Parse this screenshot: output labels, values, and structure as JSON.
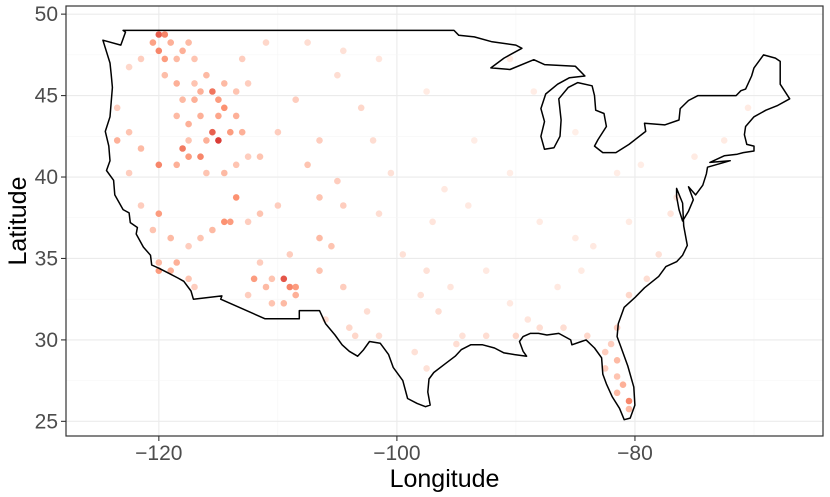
{
  "chart_data": {
    "type": "scatter",
    "title": "",
    "xlabel": "Longitude",
    "ylabel": "Latitude",
    "xlim": [
      -127.8,
      -64.2
    ],
    "ylim": [
      24.1,
      50.5
    ],
    "x_ticks": [
      -120,
      -100,
      -80
    ],
    "x_tick_labels": [
      "−120",
      "−100",
      "−80"
    ],
    "y_ticks": [
      25,
      30,
      35,
      40,
      45,
      50
    ],
    "y_tick_labels": [
      "25",
      "30",
      "35",
      "40",
      "45",
      "50"
    ],
    "grid": true,
    "legend": "none",
    "colors": {
      "low": "#fff5f0",
      "high": "#cb181d",
      "panel_border": "#333333",
      "grid_major": "#ebebeb",
      "grid_minor": "#f5f5f5",
      "outline": "#000000"
    },
    "outline": [
      [
        -124.7,
        48.4
      ],
      [
        -123.2,
        48.1
      ],
      [
        -122.8,
        48.9
      ],
      [
        -123.0,
        49.0
      ],
      [
        -95.2,
        49.0
      ],
      [
        -94.8,
        48.7
      ],
      [
        -93.5,
        48.6
      ],
      [
        -92.0,
        48.3
      ],
      [
        -90.0,
        48.1
      ],
      [
        -89.5,
        47.9
      ],
      [
        -91.0,
        47.3
      ],
      [
        -92.1,
        46.7
      ],
      [
        -90.5,
        46.6
      ],
      [
        -88.5,
        47.2
      ],
      [
        -87.6,
        46.9
      ],
      [
        -85.0,
        46.8
      ],
      [
        -84.6,
        46.5
      ],
      [
        -84.2,
        46.2
      ],
      [
        -85.5,
        46.1
      ],
      [
        -86.5,
        45.7
      ],
      [
        -87.5,
        45.1
      ],
      [
        -87.9,
        44.2
      ],
      [
        -87.6,
        43.4
      ],
      [
        -87.9,
        42.5
      ],
      [
        -87.6,
        41.7
      ],
      [
        -86.8,
        41.8
      ],
      [
        -86.3,
        42.5
      ],
      [
        -86.2,
        43.5
      ],
      [
        -86.4,
        44.8
      ],
      [
        -85.6,
        45.5
      ],
      [
        -84.8,
        45.8
      ],
      [
        -83.6,
        45.6
      ],
      [
        -83.4,
        45.0
      ],
      [
        -83.3,
        44.1
      ],
      [
        -82.6,
        43.9
      ],
      [
        -82.4,
        43.1
      ],
      [
        -83.1,
        42.3
      ],
      [
        -83.4,
        41.9
      ],
      [
        -82.7,
        41.5
      ],
      [
        -81.6,
        41.5
      ],
      [
        -80.5,
        42.0
      ],
      [
        -79.1,
        42.8
      ],
      [
        -79.2,
        43.3
      ],
      [
        -77.5,
        43.2
      ],
      [
        -76.3,
        43.5
      ],
      [
        -76.2,
        44.2
      ],
      [
        -75.5,
        44.7
      ],
      [
        -74.7,
        45.0
      ],
      [
        -71.5,
        45.0
      ],
      [
        -71.1,
        45.3
      ],
      [
        -70.7,
        45.4
      ],
      [
        -70.2,
        46.2
      ],
      [
        -70.0,
        46.7
      ],
      [
        -69.2,
        47.5
      ],
      [
        -68.2,
        47.3
      ],
      [
        -67.8,
        47.1
      ],
      [
        -67.8,
        45.7
      ],
      [
        -67.0,
        44.8
      ],
      [
        -68.0,
        44.4
      ],
      [
        -69.0,
        44.1
      ],
      [
        -70.0,
        43.7
      ],
      [
        -70.7,
        43.1
      ],
      [
        -70.8,
        42.6
      ],
      [
        -70.6,
        42.0
      ],
      [
        -70.0,
        41.9
      ],
      [
        -70.0,
        41.6
      ],
      [
        -70.9,
        41.5
      ],
      [
        -71.4,
        41.4
      ],
      [
        -72.5,
        41.3
      ],
      [
        -73.7,
        40.9
      ],
      [
        -72.0,
        41.0
      ],
      [
        -73.9,
        40.6
      ],
      [
        -74.0,
        40.2
      ],
      [
        -74.3,
        39.5
      ],
      [
        -74.9,
        38.9
      ],
      [
        -75.5,
        39.4
      ],
      [
        -75.1,
        38.6
      ],
      [
        -75.5,
        37.9
      ],
      [
        -76.0,
        37.3
      ],
      [
        -76.3,
        38.0
      ],
      [
        -76.5,
        38.8
      ],
      [
        -76.5,
        39.3
      ],
      [
        -76.0,
        38.4
      ],
      [
        -75.9,
        37.0
      ],
      [
        -75.6,
        35.8
      ],
      [
        -76.0,
        35.2
      ],
      [
        -76.5,
        34.8
      ],
      [
        -77.4,
        34.5
      ],
      [
        -78.0,
        33.9
      ],
      [
        -79.2,
        33.2
      ],
      [
        -80.0,
        32.6
      ],
      [
        -80.9,
        32.0
      ],
      [
        -81.4,
        31.0
      ],
      [
        -81.5,
        30.2
      ],
      [
        -81.2,
        29.6
      ],
      [
        -80.6,
        28.4
      ],
      [
        -80.1,
        27.1
      ],
      [
        -80.0,
        26.0
      ],
      [
        -80.4,
        25.2
      ],
      [
        -80.9,
        25.1
      ],
      [
        -81.3,
        25.8
      ],
      [
        -81.9,
        26.5
      ],
      [
        -82.4,
        27.3
      ],
      [
        -82.7,
        27.9
      ],
      [
        -82.8,
        28.9
      ],
      [
        -83.4,
        29.5
      ],
      [
        -84.1,
        30.0
      ],
      [
        -84.5,
        29.9
      ],
      [
        -85.3,
        29.7
      ],
      [
        -85.4,
        30.0
      ],
      [
        -86.4,
        30.4
      ],
      [
        -87.4,
        30.3
      ],
      [
        -88.1,
        30.4
      ],
      [
        -88.8,
        30.4
      ],
      [
        -89.4,
        30.2
      ],
      [
        -89.7,
        29.9
      ],
      [
        -89.4,
        29.3
      ],
      [
        -89.1,
        29.0
      ],
      [
        -90.1,
        29.1
      ],
      [
        -91.0,
        29.2
      ],
      [
        -91.8,
        29.5
      ],
      [
        -92.8,
        29.7
      ],
      [
        -93.8,
        29.7
      ],
      [
        -94.6,
        29.4
      ],
      [
        -95.1,
        29.0
      ],
      [
        -96.0,
        28.5
      ],
      [
        -96.9,
        28.0
      ],
      [
        -97.3,
        27.6
      ],
      [
        -97.4,
        26.8
      ],
      [
        -97.2,
        26.0
      ],
      [
        -97.6,
        25.9
      ],
      [
        -98.3,
        26.1
      ],
      [
        -99.1,
        26.4
      ],
      [
        -99.5,
        27.5
      ],
      [
        -100.3,
        28.3
      ],
      [
        -100.7,
        29.1
      ],
      [
        -101.4,
        29.8
      ],
      [
        -102.3,
        29.9
      ],
      [
        -102.8,
        29.4
      ],
      [
        -103.3,
        29.0
      ],
      [
        -104.0,
        29.3
      ],
      [
        -104.6,
        29.7
      ],
      [
        -105.2,
        30.3
      ],
      [
        -106.0,
        31.0
      ],
      [
        -106.5,
        31.8
      ],
      [
        -108.2,
        31.8
      ],
      [
        -108.2,
        31.3
      ],
      [
        -111.1,
        31.3
      ],
      [
        -114.8,
        32.5
      ],
      [
        -114.7,
        32.7
      ],
      [
        -117.1,
        32.5
      ],
      [
        -117.3,
        33.0
      ],
      [
        -117.9,
        33.6
      ],
      [
        -118.4,
        33.8
      ],
      [
        -119.2,
        34.1
      ],
      [
        -120.0,
        34.4
      ],
      [
        -120.6,
        34.6
      ],
      [
        -120.7,
        35.2
      ],
      [
        -121.3,
        35.7
      ],
      [
        -121.9,
        36.5
      ],
      [
        -121.8,
        36.9
      ],
      [
        -122.4,
        37.2
      ],
      [
        -122.5,
        37.8
      ],
      [
        -123.0,
        38.0
      ],
      [
        -123.7,
        38.9
      ],
      [
        -123.8,
        39.8
      ],
      [
        -124.4,
        40.4
      ],
      [
        -124.1,
        41.0
      ],
      [
        -124.2,
        41.9
      ],
      [
        -124.5,
        42.8
      ],
      [
        -124.1,
        43.7
      ],
      [
        -124.0,
        44.6
      ],
      [
        -123.9,
        45.5
      ],
      [
        -124.0,
        46.3
      ],
      [
        -124.1,
        47.0
      ],
      [
        -124.7,
        48.4
      ]
    ],
    "max_value": 1.0,
    "points": [
      [
        -120.0,
        48.75,
        0.72
      ],
      [
        -119.5,
        48.75,
        0.55
      ],
      [
        -120.5,
        48.25,
        0.42
      ],
      [
        -119.0,
        48.25,
        0.35
      ],
      [
        -120.0,
        47.75,
        0.55
      ],
      [
        -119.5,
        47.25,
        0.45
      ],
      [
        -118.5,
        47.25,
        0.3
      ],
      [
        -118.0,
        47.75,
        0.35
      ],
      [
        -117.5,
        48.25,
        0.3
      ],
      [
        -117.0,
        47.25,
        0.25
      ],
      [
        -121.5,
        47.25,
        0.2
      ],
      [
        -122.5,
        46.75,
        0.15
      ],
      [
        -116.0,
        46.25,
        0.3
      ],
      [
        -117.0,
        45.75,
        0.25
      ],
      [
        -118.5,
        45.75,
        0.35
      ],
      [
        -119.5,
        46.25,
        0.28
      ],
      [
        -115.5,
        45.25,
        0.62
      ],
      [
        -116.5,
        45.25,
        0.35
      ],
      [
        -117.0,
        44.75,
        0.35
      ],
      [
        -118.0,
        44.75,
        0.3
      ],
      [
        -115.0,
        44.75,
        0.45
      ],
      [
        -114.5,
        45.75,
        0.3
      ],
      [
        -113.5,
        45.25,
        0.25
      ],
      [
        -112.5,
        45.75,
        0.2
      ],
      [
        -114.5,
        44.25,
        0.5
      ],
      [
        -113.5,
        43.75,
        0.35
      ],
      [
        -115.0,
        43.75,
        0.4
      ],
      [
        -116.5,
        43.75,
        0.35
      ],
      [
        -118.5,
        43.75,
        0.3
      ],
      [
        -117.5,
        43.25,
        0.35
      ],
      [
        -115.5,
        42.75,
        0.7
      ],
      [
        -115.0,
        42.25,
        0.85
      ],
      [
        -114.0,
        42.75,
        0.45
      ],
      [
        -113.0,
        42.75,
        0.35
      ],
      [
        -116.0,
        42.25,
        0.35
      ],
      [
        -117.5,
        42.25,
        0.25
      ],
      [
        -118.0,
        41.75,
        0.6
      ],
      [
        -117.5,
        41.25,
        0.45
      ],
      [
        -116.5,
        41.25,
        0.55
      ],
      [
        -118.5,
        40.75,
        0.35
      ],
      [
        -120.0,
        40.75,
        0.55
      ],
      [
        -116.0,
        40.25,
        0.25
      ],
      [
        -114.5,
        40.25,
        0.3
      ],
      [
        -113.5,
        40.75,
        0.25
      ],
      [
        -121.5,
        41.75,
        0.3
      ],
      [
        -122.5,
        42.75,
        0.25
      ],
      [
        -123.5,
        42.25,
        0.35
      ],
      [
        -123.5,
        44.25,
        0.2
      ],
      [
        -122.5,
        40.25,
        0.2
      ],
      [
        -113.5,
        38.75,
        0.5
      ],
      [
        -114.5,
        37.25,
        0.5
      ],
      [
        -114.0,
        37.25,
        0.45
      ],
      [
        -115.5,
        36.75,
        0.3
      ],
      [
        -116.5,
        36.25,
        0.25
      ],
      [
        -117.5,
        35.75,
        0.2
      ],
      [
        -119.0,
        36.25,
        0.3
      ],
      [
        -120.0,
        37.75,
        0.45
      ],
      [
        -120.5,
        36.75,
        0.25
      ],
      [
        -121.5,
        38.25,
        0.2
      ],
      [
        -118.5,
        34.75,
        0.35
      ],
      [
        -120.0,
        34.75,
        0.3
      ],
      [
        -120.0,
        34.25,
        0.45
      ],
      [
        -119.0,
        34.25,
        0.35
      ],
      [
        -117.5,
        33.75,
        0.25
      ],
      [
        -117.0,
        33.25,
        0.2
      ],
      [
        -112.0,
        33.75,
        0.45
      ],
      [
        -111.0,
        33.25,
        0.3
      ],
      [
        -110.5,
        33.75,
        0.25
      ],
      [
        -109.5,
        33.75,
        0.75
      ],
      [
        -109.0,
        33.25,
        0.55
      ],
      [
        -108.5,
        33.25,
        0.45
      ],
      [
        -108.5,
        32.75,
        0.35
      ],
      [
        -109.5,
        32.25,
        0.3
      ],
      [
        -110.5,
        32.25,
        0.25
      ],
      [
        -112.5,
        32.75,
        0.2
      ],
      [
        -111.5,
        34.75,
        0.2
      ],
      [
        -109.0,
        35.25,
        0.2
      ],
      [
        -106.5,
        36.25,
        0.3
      ],
      [
        -105.5,
        35.75,
        0.25
      ],
      [
        -106.5,
        34.25,
        0.25
      ],
      [
        -104.5,
        33.25,
        0.2
      ],
      [
        -106.5,
        38.75,
        0.25
      ],
      [
        -105.0,
        39.75,
        0.2
      ],
      [
        -104.5,
        38.25,
        0.2
      ],
      [
        -107.5,
        40.75,
        0.25
      ],
      [
        -106.5,
        42.25,
        0.2
      ],
      [
        -108.5,
        44.75,
        0.2
      ],
      [
        -110.0,
        42.75,
        0.2
      ],
      [
        -111.5,
        41.25,
        0.25
      ],
      [
        -112.5,
        41.25,
        0.2
      ],
      [
        -111.5,
        37.75,
        0.25
      ],
      [
        -112.5,
        37.25,
        0.2
      ],
      [
        -110.0,
        38.25,
        0.2
      ],
      [
        -103.0,
        44.25,
        0.15
      ],
      [
        -102.0,
        42.25,
        0.12
      ],
      [
        -100.5,
        40.25,
        0.1
      ],
      [
        -101.5,
        37.75,
        0.12
      ],
      [
        -99.5,
        35.25,
        0.1
      ],
      [
        -97.5,
        34.25,
        0.1
      ],
      [
        -96.5,
        31.75,
        0.12
      ],
      [
        -98.5,
        29.25,
        0.1
      ],
      [
        -102.5,
        31.75,
        0.12
      ],
      [
        -104.0,
        30.75,
        0.15
      ],
      [
        -103.5,
        30.25,
        0.15
      ],
      [
        -101.5,
        30.25,
        0.12
      ],
      [
        -106.0,
        31.25,
        0.12
      ],
      [
        -98.0,
        32.75,
        0.1
      ],
      [
        -95.5,
        33.25,
        0.08
      ],
      [
        -97.0,
        37.25,
        0.08
      ],
      [
        -96.0,
        39.25,
        0.06
      ],
      [
        -94.0,
        38.25,
        0.06
      ],
      [
        -92.5,
        34.25,
        0.06
      ],
      [
        -90.5,
        32.25,
        0.06
      ],
      [
        -89.0,
        31.25,
        0.08
      ],
      [
        -86.5,
        33.25,
        0.06
      ],
      [
        -84.5,
        34.25,
        0.05
      ],
      [
        -85.0,
        36.25,
        0.05
      ],
      [
        -88.0,
        37.25,
        0.05
      ],
      [
        -90.5,
        40.25,
        0.04
      ],
      [
        -93.5,
        42.25,
        0.04
      ],
      [
        -97.5,
        45.25,
        0.05
      ],
      [
        -101.5,
        47.25,
        0.08
      ],
      [
        -104.5,
        47.75,
        0.1
      ],
      [
        -107.5,
        48.25,
        0.12
      ],
      [
        -111.0,
        48.25,
        0.15
      ],
      [
        -113.0,
        47.25,
        0.2
      ],
      [
        -105.0,
        46.25,
        0.12
      ],
      [
        -82.0,
        29.75,
        0.2
      ],
      [
        -81.5,
        28.75,
        0.3
      ],
      [
        -81.5,
        27.75,
        0.25
      ],
      [
        -81.0,
        27.25,
        0.35
      ],
      [
        -80.5,
        26.25,
        0.55
      ],
      [
        -80.5,
        25.75,
        0.3
      ],
      [
        -81.5,
        26.75,
        0.3
      ],
      [
        -82.5,
        28.25,
        0.2
      ],
      [
        -82.5,
        29.25,
        0.2
      ],
      [
        -81.5,
        30.75,
        0.2
      ],
      [
        -80.5,
        32.75,
        0.15
      ],
      [
        -79.0,
        33.75,
        0.12
      ],
      [
        -78.0,
        35.25,
        0.1
      ],
      [
        -77.0,
        37.75,
        0.08
      ],
      [
        -76.5,
        38.75,
        0.08
      ],
      [
        -75.0,
        41.25,
        0.05
      ],
      [
        -72.5,
        42.25,
        0.05
      ],
      [
        -70.5,
        44.25,
        0.05
      ],
      [
        -84.0,
        30.25,
        0.15
      ],
      [
        -86.0,
        30.75,
        0.12
      ],
      [
        -88.0,
        30.75,
        0.12
      ],
      [
        -90.0,
        30.25,
        0.15
      ],
      [
        -92.5,
        30.25,
        0.12
      ],
      [
        -94.5,
        30.25,
        0.1
      ],
      [
        -95.0,
        29.75,
        0.12
      ],
      [
        -97.5,
        28.25,
        0.1
      ],
      [
        -83.5,
        35.75,
        0.06
      ],
      [
        -80.5,
        37.25,
        0.05
      ],
      [
        -81.5,
        40.25,
        0.04
      ],
      [
        -79.5,
        40.75,
        0.04
      ],
      [
        -88.5,
        45.25,
        0.04
      ],
      [
        -90.5,
        47.25,
        0.05
      ],
      [
        -85.0,
        42.75,
        0.03
      ]
    ]
  }
}
